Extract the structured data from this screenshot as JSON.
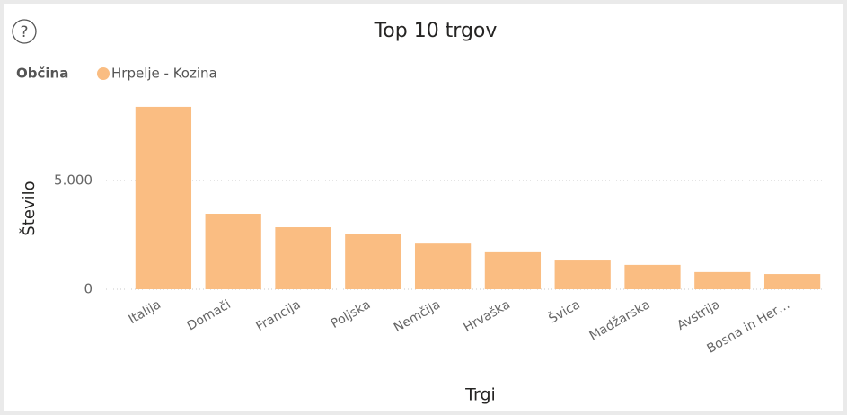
{
  "icon": "?",
  "chart_data": {
    "type": "bar",
    "title": "Top 10 trgov",
    "legend_title": "Občina",
    "series": [
      {
        "name": "Hrpelje - Kozina",
        "color": "#fabd82",
        "values": [
          8390,
          3470,
          2850,
          2560,
          2100,
          1740,
          1320,
          1120,
          790,
          700
        ]
      }
    ],
    "categories": [
      "Italija",
      "Domači",
      "Francija",
      "Poljska",
      "Nemčija",
      "Hrvaška",
      "Švica",
      "Madžarska",
      "Avstrija",
      "Bosna in Her…"
    ],
    "x_label": "Trgi",
    "y_label": "Število",
    "ylim": [
      0,
      8800
    ],
    "yticks": [
      0,
      {
        "value": 5000,
        "label": "5.000"
      }
    ],
    "grid": true,
    "legend_position": "top-left"
  }
}
